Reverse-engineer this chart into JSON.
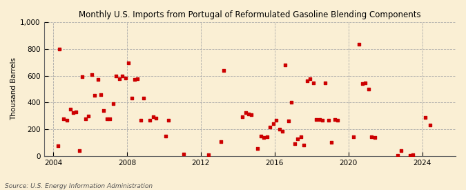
{
  "title": "Monthly U.S. Imports from Portugal of Reformulated Gasoline Blending Components",
  "ylabel": "Thousand Barrels",
  "source": "Source: U.S. Energy Information Administration",
  "background_color": "#faefd4",
  "point_color": "#cc0000",
  "ylim": [
    0,
    1000
  ],
  "yticks": [
    0,
    200,
    400,
    600,
    800,
    1000
  ],
  "ytick_labels": [
    "0",
    "200",
    "400",
    "600",
    "800",
    "1,000"
  ],
  "xticks": [
    2004,
    2008,
    2012,
    2016,
    2020,
    2024
  ],
  "xlim": [
    2003.5,
    2025.8
  ],
  "data_points": [
    [
      2004.25,
      75
    ],
    [
      2004.33,
      800
    ],
    [
      2004.58,
      280
    ],
    [
      2004.75,
      270
    ],
    [
      2004.92,
      350
    ],
    [
      2005.08,
      325
    ],
    [
      2005.25,
      330
    ],
    [
      2005.42,
      40
    ],
    [
      2005.58,
      590
    ],
    [
      2005.75,
      280
    ],
    [
      2005.92,
      300
    ],
    [
      2006.08,
      610
    ],
    [
      2006.25,
      455
    ],
    [
      2006.42,
      570
    ],
    [
      2006.58,
      460
    ],
    [
      2006.75,
      340
    ],
    [
      2006.92,
      280
    ],
    [
      2007.08,
      280
    ],
    [
      2007.25,
      390
    ],
    [
      2007.42,
      600
    ],
    [
      2007.58,
      575
    ],
    [
      2007.75,
      600
    ],
    [
      2007.92,
      580
    ],
    [
      2008.08,
      695
    ],
    [
      2008.25,
      430
    ],
    [
      2008.42,
      570
    ],
    [
      2008.58,
      575
    ],
    [
      2008.75,
      265
    ],
    [
      2008.92,
      430
    ],
    [
      2009.25,
      265
    ],
    [
      2009.42,
      295
    ],
    [
      2009.58,
      285
    ],
    [
      2010.08,
      150
    ],
    [
      2010.25,
      265
    ],
    [
      2011.08,
      15
    ],
    [
      2012.42,
      10
    ],
    [
      2013.08,
      110
    ],
    [
      2013.25,
      640
    ],
    [
      2014.25,
      295
    ],
    [
      2014.42,
      325
    ],
    [
      2014.58,
      315
    ],
    [
      2014.75,
      310
    ],
    [
      2015.08,
      55
    ],
    [
      2015.25,
      150
    ],
    [
      2015.42,
      140
    ],
    [
      2015.58,
      145
    ],
    [
      2015.75,
      215
    ],
    [
      2015.92,
      240
    ],
    [
      2016.08,
      265
    ],
    [
      2016.25,
      200
    ],
    [
      2016.42,
      185
    ],
    [
      2016.58,
      680
    ],
    [
      2016.75,
      260
    ],
    [
      2016.92,
      400
    ],
    [
      2017.08,
      90
    ],
    [
      2017.25,
      130
    ],
    [
      2017.42,
      145
    ],
    [
      2017.58,
      80
    ],
    [
      2017.75,
      560
    ],
    [
      2017.92,
      575
    ],
    [
      2018.08,
      545
    ],
    [
      2018.25,
      275
    ],
    [
      2018.42,
      275
    ],
    [
      2018.58,
      270
    ],
    [
      2018.75,
      545
    ],
    [
      2018.92,
      270
    ],
    [
      2019.08,
      105
    ],
    [
      2019.25,
      275
    ],
    [
      2019.42,
      270
    ],
    [
      2020.25,
      145
    ],
    [
      2020.58,
      835
    ],
    [
      2020.75,
      540
    ],
    [
      2020.92,
      545
    ],
    [
      2021.08,
      500
    ],
    [
      2021.25,
      145
    ],
    [
      2021.42,
      140
    ],
    [
      2022.67,
      5
    ],
    [
      2022.83,
      40
    ],
    [
      2023.33,
      5
    ],
    [
      2023.5,
      10
    ],
    [
      2024.17,
      290
    ],
    [
      2024.42,
      230
    ]
  ]
}
